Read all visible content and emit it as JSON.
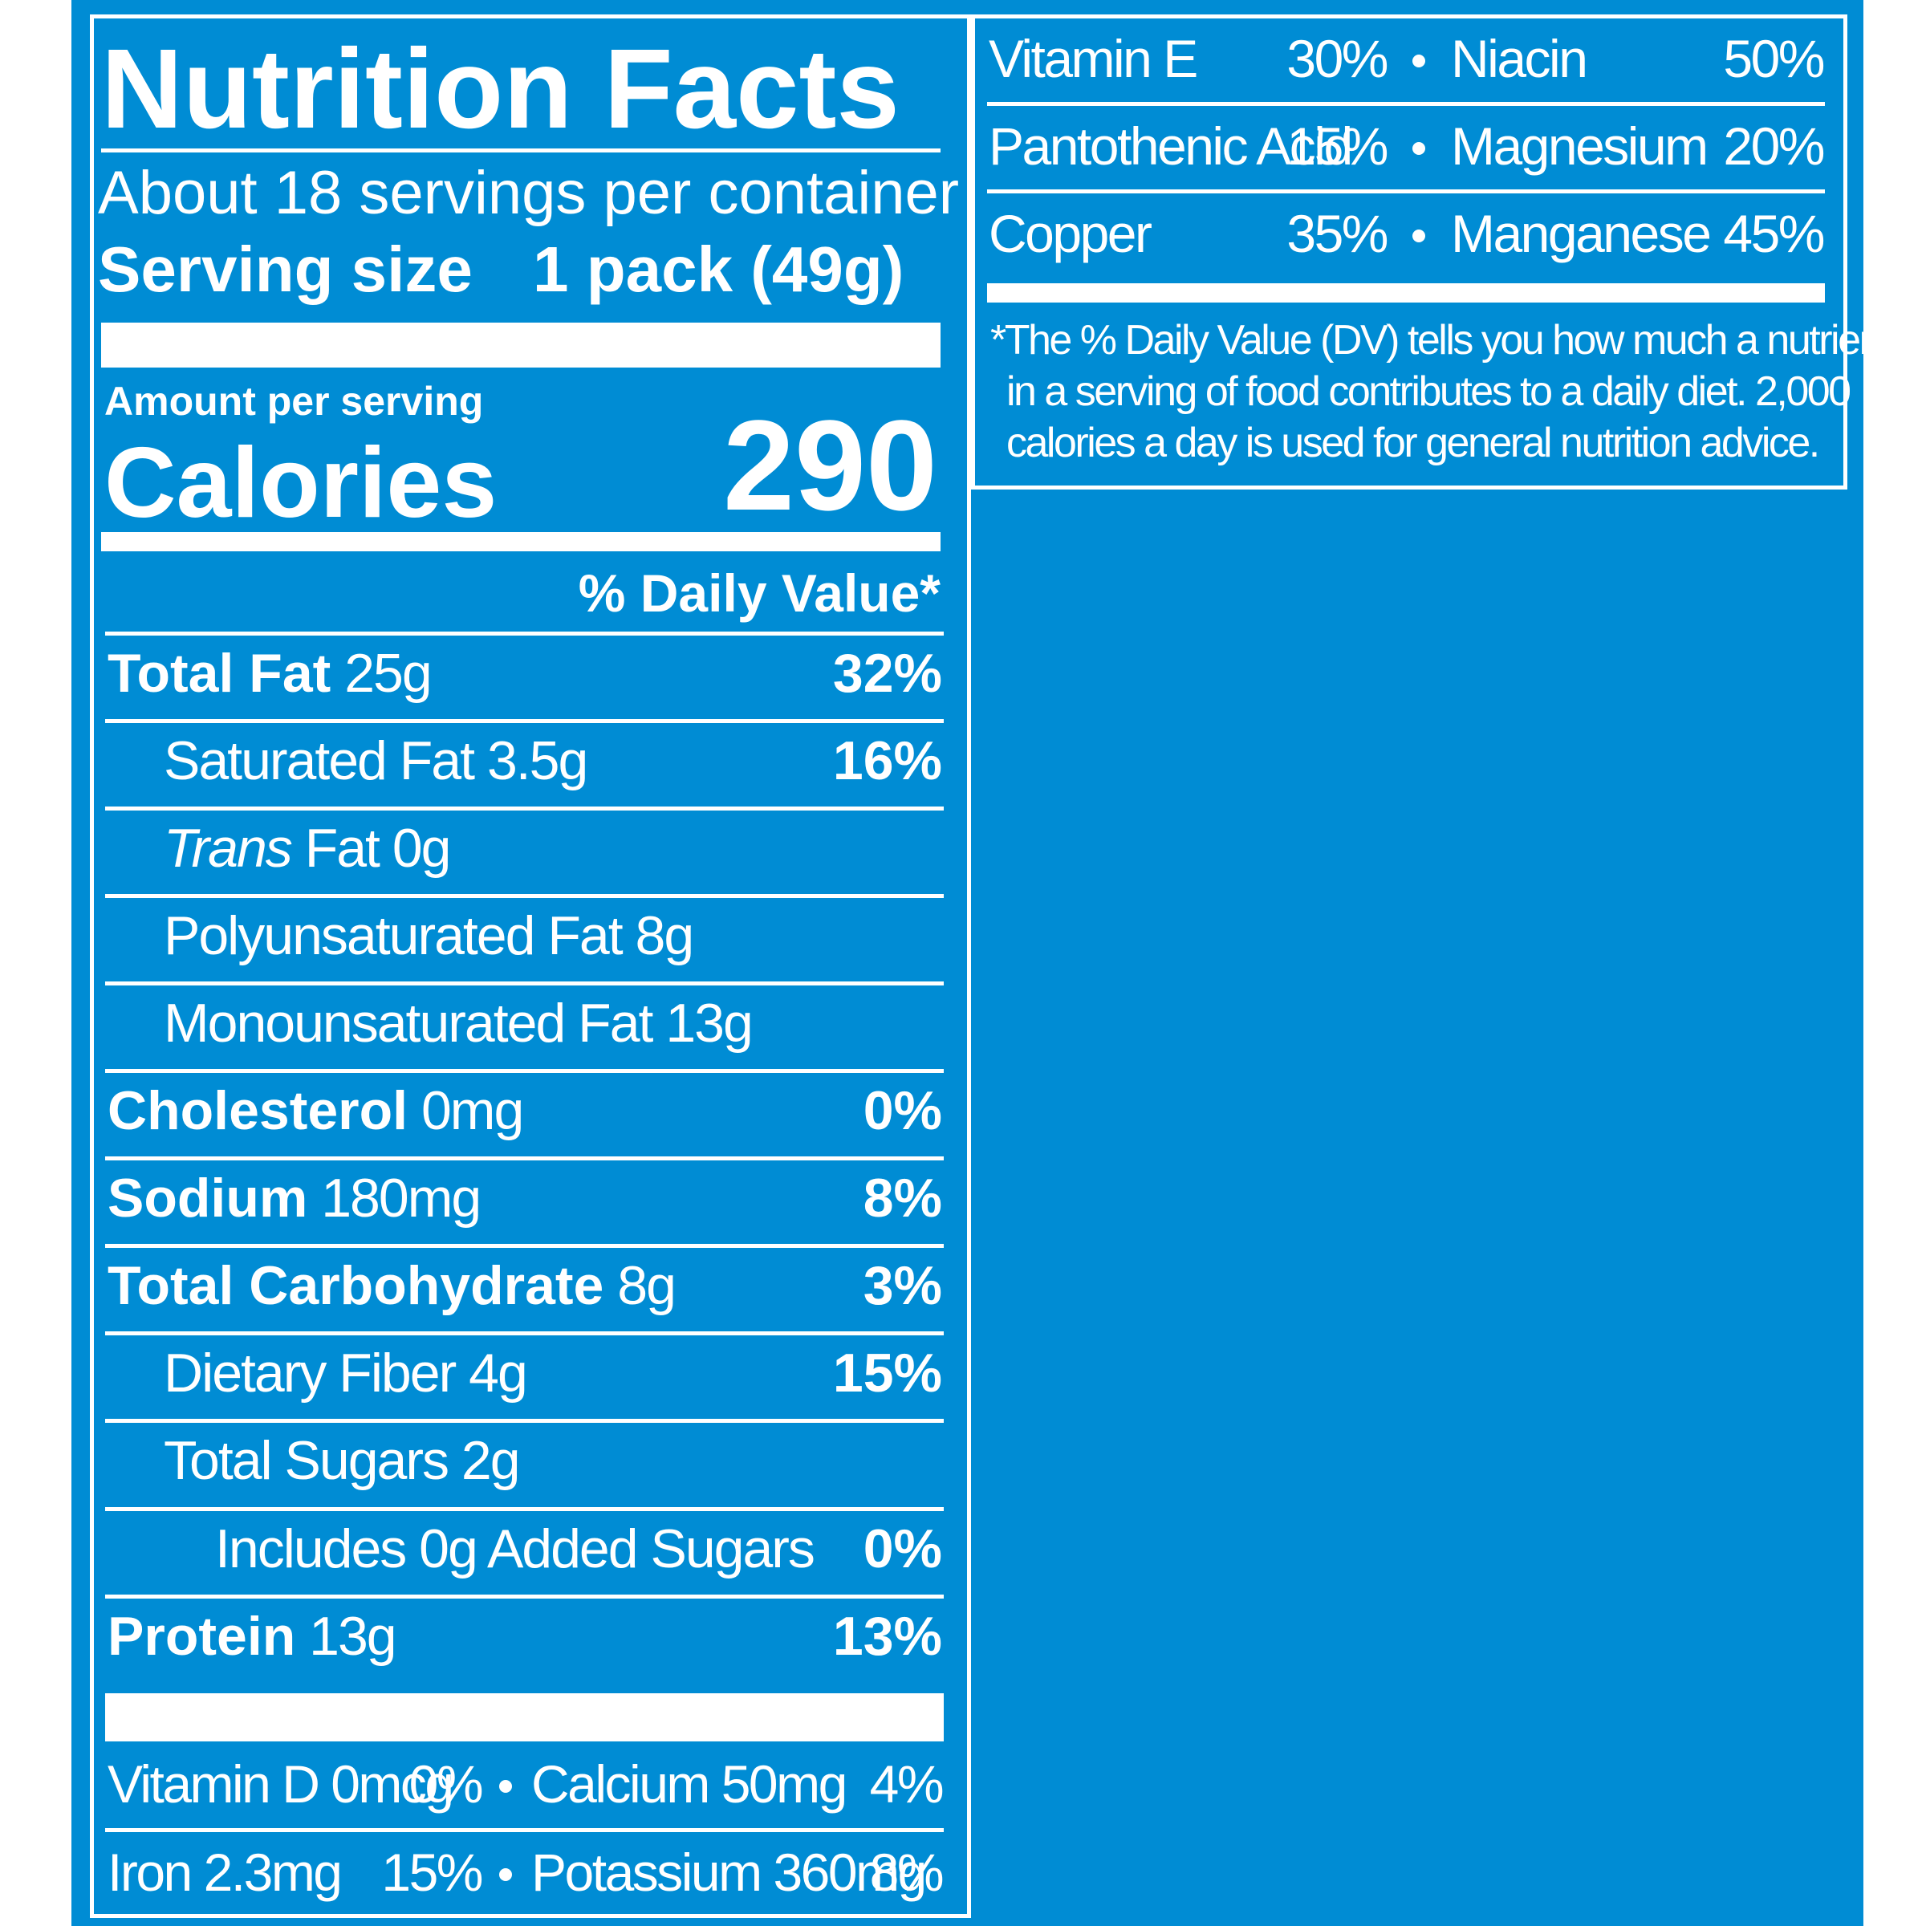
{
  "label": {
    "title": "Nutrition Facts",
    "servings_per_container": "About 18 servings per container",
    "serving_size_label": "Serving size",
    "serving_size_value": "1 pack (49g)",
    "amount_per_serving": "Amount per serving",
    "calories_label": "Calories",
    "calories_value": "290",
    "daily_value_header": "% Daily Value*"
  },
  "nutrients": [
    {
      "name": "Total Fat",
      "amount": "25g",
      "dv": "32%"
    },
    {
      "name": "Saturated Fat",
      "amount": "3.5g",
      "dv": "16%"
    },
    {
      "name_italic": "Trans",
      "name": "Fat",
      "amount": "0g",
      "dv": ""
    },
    {
      "name": "Polyunsaturated Fat",
      "amount": "8g",
      "dv": ""
    },
    {
      "name": "Monounsaturated Fat",
      "amount": "13g",
      "dv": ""
    },
    {
      "name": "Cholesterol",
      "amount": "0mg",
      "dv": "0%"
    },
    {
      "name": "Sodium",
      "amount": "180mg",
      "dv": "8%"
    },
    {
      "name": "Total Carbohydrate",
      "amount": "8g",
      "dv": "3%"
    },
    {
      "name": "Dietary Fiber",
      "amount": "4g",
      "dv": "15%"
    },
    {
      "name": "Total Sugars",
      "amount": "2g",
      "dv": ""
    },
    {
      "name": "Includes 0g Added Sugars",
      "amount": "",
      "dv": "0%"
    },
    {
      "name": "Protein",
      "amount": "13g",
      "dv": "13%"
    }
  ],
  "minerals_left": [
    {
      "a_name": "Vitamin D 0mcg",
      "a_dv": "0%",
      "b_name": "Calcium 50mg",
      "b_dv": "4%"
    },
    {
      "a_name": "Iron 2.3mg",
      "a_dv": "15%",
      "b_name": "Potassium 360mg",
      "b_dv": "8%"
    }
  ],
  "vitamins_right": [
    {
      "a_name": "Vitamin E",
      "a_dv": "30%",
      "b_name": "Niacin",
      "b_dv": "50%"
    },
    {
      "a_name": "Pantothenic Acid",
      "a_dv": "15%",
      "b_name": "Magnesium",
      "b_dv": "20%"
    },
    {
      "a_name": "Copper",
      "a_dv": "35%",
      "b_name": "Manganese",
      "b_dv": "45%"
    }
  ],
  "footnote": {
    "line1": "*The % Daily Value (DV) tells you how much a nutrient",
    "line2": "in a serving of food contributes to a daily diet. 2,000",
    "line3": "calories a day is used for general nutrition advice."
  },
  "colors": {
    "background": "#008cd4",
    "foreground": "#ffffff"
  }
}
